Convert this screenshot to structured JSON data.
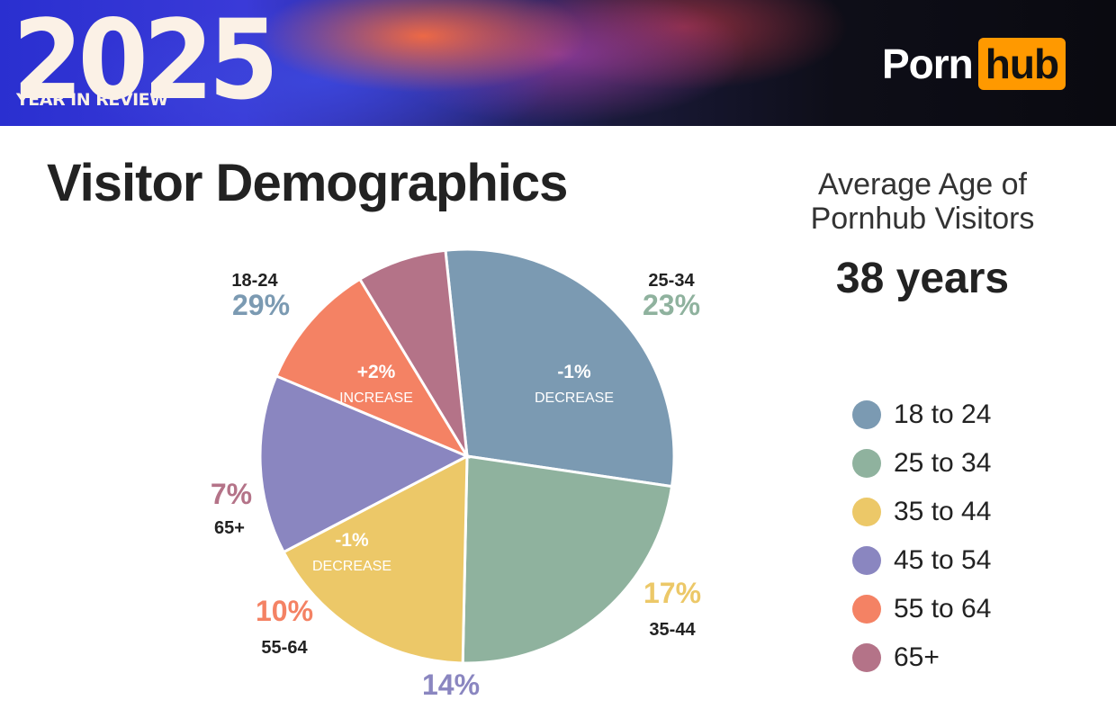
{
  "header": {
    "year": "2025",
    "year_in_review": "YEAR IN REVIEW",
    "logo_part1": "Porn",
    "logo_part2": "hub",
    "logo_accent": "#ff9900"
  },
  "title": "Visitor Demographics",
  "average_age": {
    "label": "Average Age of Pornhub Visitors",
    "value": "38 years"
  },
  "chart_data": {
    "type": "pie",
    "categories": [
      "18-24",
      "25-34",
      "35-44",
      "45-54",
      "55-64",
      "65+"
    ],
    "values": [
      29,
      23,
      17,
      14,
      10,
      7
    ],
    "value_labels": [
      "29%",
      "23%",
      "17%",
      "14%",
      "10%",
      "7%"
    ],
    "colors": [
      "#7b9ab2",
      "#8fb29e",
      "#ecc868",
      "#8a86c0",
      "#f48264",
      "#b47388"
    ],
    "legend": [
      "18 to 24",
      "25 to 34",
      "35 to 44",
      "45 to 54",
      "55 to 64",
      "65+"
    ],
    "legend_placement": "right",
    "annotations": [
      {
        "category": "18-24",
        "change": "+2%",
        "label": "INCREASE"
      },
      {
        "category": "25-34",
        "change": "-1%",
        "label": "DECREASE"
      },
      {
        "category": "55-64",
        "change": "-1%",
        "label": "DECREASE"
      }
    ]
  }
}
